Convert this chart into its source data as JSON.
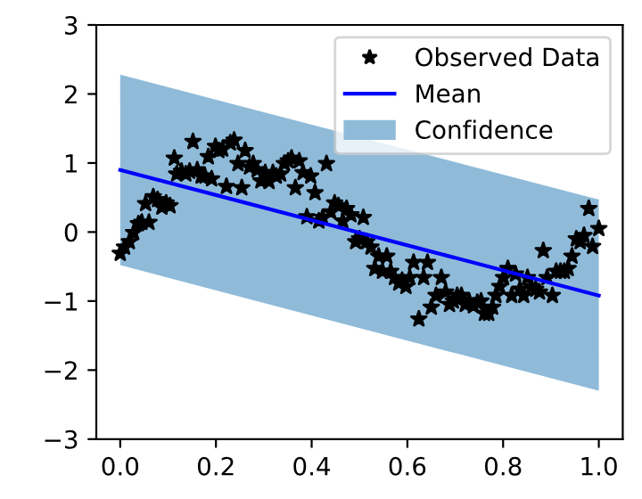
{
  "chart_data": {
    "type": "scatter",
    "xlim": [
      -0.05,
      1.05
    ],
    "ylim": [
      -3,
      3
    ],
    "xticks": [
      {
        "value": 0,
        "label": "0.0"
      },
      {
        "value": 0.2,
        "label": "0.2"
      },
      {
        "value": 0.4,
        "label": "0.4"
      },
      {
        "value": 0.6,
        "label": "0.6"
      },
      {
        "value": 0.8,
        "label": "0.8"
      },
      {
        "value": 1,
        "label": "1.0"
      }
    ],
    "yticks": [
      {
        "value": -3,
        "label": "−3"
      },
      {
        "value": -2,
        "label": "−2"
      },
      {
        "value": -1,
        "label": "−1"
      },
      0,
      1,
      2,
      3
    ],
    "grid": false,
    "legend": "top right",
    "series": [
      {
        "name": "Observed Data",
        "type": "scatter",
        "marker": "star",
        "color": "#000000",
        "x": [
          0.0,
          0.009,
          0.019,
          0.028,
          0.038,
          0.045,
          0.053,
          0.06,
          0.069,
          0.078,
          0.087,
          0.096,
          0.104,
          0.113,
          0.118,
          0.128,
          0.137,
          0.145,
          0.152,
          0.161,
          0.169,
          0.177,
          0.184,
          0.191,
          0.199,
          0.206,
          0.214,
          0.222,
          0.23,
          0.238,
          0.246,
          0.254,
          0.261,
          0.27,
          0.278,
          0.286,
          0.294,
          0.303,
          0.311,
          0.319,
          0.326,
          0.335,
          0.343,
          0.351,
          0.358,
          0.366,
          0.374,
          0.382,
          0.39,
          0.398,
          0.407,
          0.415,
          0.423,
          0.431,
          0.44,
          0.448,
          0.456,
          0.465,
          0.473,
          0.482,
          0.492,
          0.5,
          0.508,
          0.515,
          0.524,
          0.532,
          0.54,
          0.548,
          0.557,
          0.565,
          0.573,
          0.582,
          0.589,
          0.597,
          0.605,
          0.613,
          0.624,
          0.634,
          0.642,
          0.65,
          0.66,
          0.671,
          0.68,
          0.688,
          0.696,
          0.704,
          0.713,
          0.721,
          0.729,
          0.738,
          0.746,
          0.754,
          0.761,
          0.77,
          0.778,
          0.785,
          0.793,
          0.801,
          0.81,
          0.818,
          0.826,
          0.835,
          0.843,
          0.851,
          0.859,
          0.868,
          0.876,
          0.884,
          0.892,
          0.903,
          0.911,
          0.92,
          0.928,
          0.936,
          0.944,
          0.953,
          0.961,
          0.969,
          0.979,
          0.987,
          1.0
        ],
        "values": [
          -0.31,
          -0.22,
          -0.14,
          -0.01,
          0.12,
          0.14,
          0.41,
          0.14,
          0.51,
          0.47,
          0.36,
          0.42,
          0.38,
          1.07,
          0.84,
          0.88,
          0.84,
          0.88,
          1.31,
          0.9,
          0.81,
          0.81,
          1.09,
          0.77,
          1.24,
          1.18,
          1.2,
          0.66,
          1.29,
          1.33,
          0.99,
          0.64,
          1.18,
          0.94,
          0.99,
          0.9,
          0.74,
          0.86,
          0.73,
          0.86,
          0.81,
          0.84,
          0.99,
          1.03,
          1.07,
          0.64,
          1.03,
          0.86,
          0.22,
          0.81,
          0.57,
          0.16,
          0.21,
          0.99,
          0.29,
          0.42,
          0.38,
          0.16,
          0.34,
          0.25,
          -0.14,
          -0.1,
          0.21,
          -0.14,
          -0.22,
          -0.53,
          -0.35,
          -0.57,
          -0.35,
          -0.57,
          -0.66,
          -0.74,
          -0.7,
          -0.79,
          -0.66,
          -0.44,
          -1.26,
          -0.66,
          -0.44,
          -1.09,
          -0.92,
          -0.66,
          -0.87,
          -1.05,
          -1.0,
          -0.92,
          -0.92,
          -1.05,
          -1.0,
          -1.07,
          -1.02,
          -1.0,
          -1.18,
          -1.18,
          -1.09,
          -0.92,
          -0.79,
          -0.66,
          -0.53,
          -0.92,
          -0.61,
          -0.83,
          -0.92,
          -0.66,
          -0.79,
          -0.83,
          -0.87,
          -0.27,
          -0.66,
          -0.92,
          -0.57,
          -0.57,
          -0.57,
          -0.53,
          -0.35,
          -0.1,
          -0.14,
          -0.05,
          0.34,
          -0.21,
          0.05
        ]
      },
      {
        "name": "Mean",
        "type": "line",
        "color": "#0000ff",
        "x": [
          0,
          1
        ],
        "values": [
          0.9,
          -0.92
        ]
      },
      {
        "name": "Confidence",
        "type": "area",
        "color": "#8fbbd9",
        "x": [
          0,
          1,
          1,
          0
        ],
        "values": [
          2.28,
          0.47,
          -2.3,
          -0.48
        ]
      }
    ]
  }
}
